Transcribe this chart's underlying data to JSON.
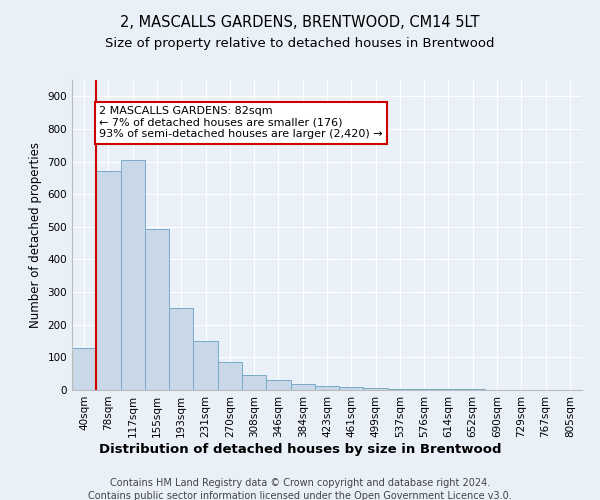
{
  "title": "2, MASCALLS GARDENS, BRENTWOOD, CM14 5LT",
  "subtitle": "Size of property relative to detached houses in Brentwood",
  "xlabel": "Distribution of detached houses by size in Brentwood",
  "ylabel": "Number of detached properties",
  "footer_line1": "Contains HM Land Registry data © Crown copyright and database right 2024.",
  "footer_line2": "Contains public sector information licensed under the Open Government Licence v3.0.",
  "bin_labels": [
    "40sqm",
    "78sqm",
    "117sqm",
    "155sqm",
    "193sqm",
    "231sqm",
    "270sqm",
    "308sqm",
    "346sqm",
    "384sqm",
    "423sqm",
    "461sqm",
    "499sqm",
    "537sqm",
    "576sqm",
    "614sqm",
    "652sqm",
    "690sqm",
    "729sqm",
    "767sqm",
    "805sqm"
  ],
  "bar_values": [
    130,
    670,
    705,
    492,
    250,
    150,
    85,
    45,
    30,
    18,
    12,
    8,
    6,
    4,
    3,
    2,
    2,
    1,
    1,
    1,
    0
  ],
  "bar_color": "#c8d8e8",
  "bar_edge_color": "#7aaac8",
  "vline_x": 0.5,
  "annotation_text": "2 MASCALLS GARDENS: 82sqm\n← 7% of detached houses are smaller (176)\n93% of semi-detached houses are larger (2,420) →",
  "annotation_box_color": "#ffffff",
  "annotation_box_edge_color": "#cc0000",
  "vline_color": "#cc0000",
  "ylim": [
    0,
    950
  ],
  "yticks": [
    0,
    100,
    200,
    300,
    400,
    500,
    600,
    700,
    800,
    900
  ],
  "background_color": "#eaf0f8",
  "title_fontsize": 10.5,
  "subtitle_fontsize": 9.5,
  "xlabel_fontsize": 9.5,
  "ylabel_fontsize": 8.5,
  "tick_fontsize": 7.5,
  "footer_fontsize": 7.0,
  "annotation_fontsize": 8.0
}
